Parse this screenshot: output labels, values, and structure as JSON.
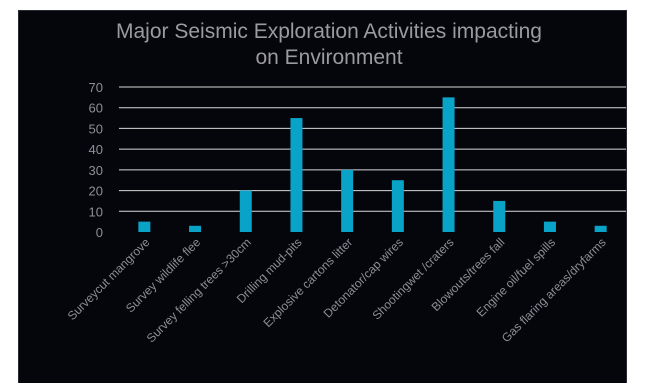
{
  "chart_data": {
    "type": "bar",
    "title_lines": [
      "Major Seismic Exploration Activities impacting",
      "on Environment"
    ],
    "categories": [
      "Surveycut mangrove",
      "Survey wildlife flee",
      "Survey felling trees >30cm",
      "Drilling mud-pits",
      "Explosive cartons litter",
      "Detonator/cap wires",
      "Shootingwet /craters",
      "Blowouts/trees fall",
      "Engine oil/fuel spills",
      "Gas flaring areas/dryfarms"
    ],
    "values": [
      5,
      3,
      20,
      55,
      30,
      25,
      65,
      15,
      5,
      3
    ],
    "xlabel": "",
    "ylabel": "",
    "ylim": [
      0,
      70
    ],
    "yticks": [
      0,
      10,
      20,
      30,
      40,
      50,
      60,
      70
    ],
    "grid": true,
    "legend": "none",
    "colors": {
      "bar": "#0aa3c8",
      "background": "#05050c",
      "grid": "#d9d9d9",
      "text": "#8e8e94"
    }
  }
}
